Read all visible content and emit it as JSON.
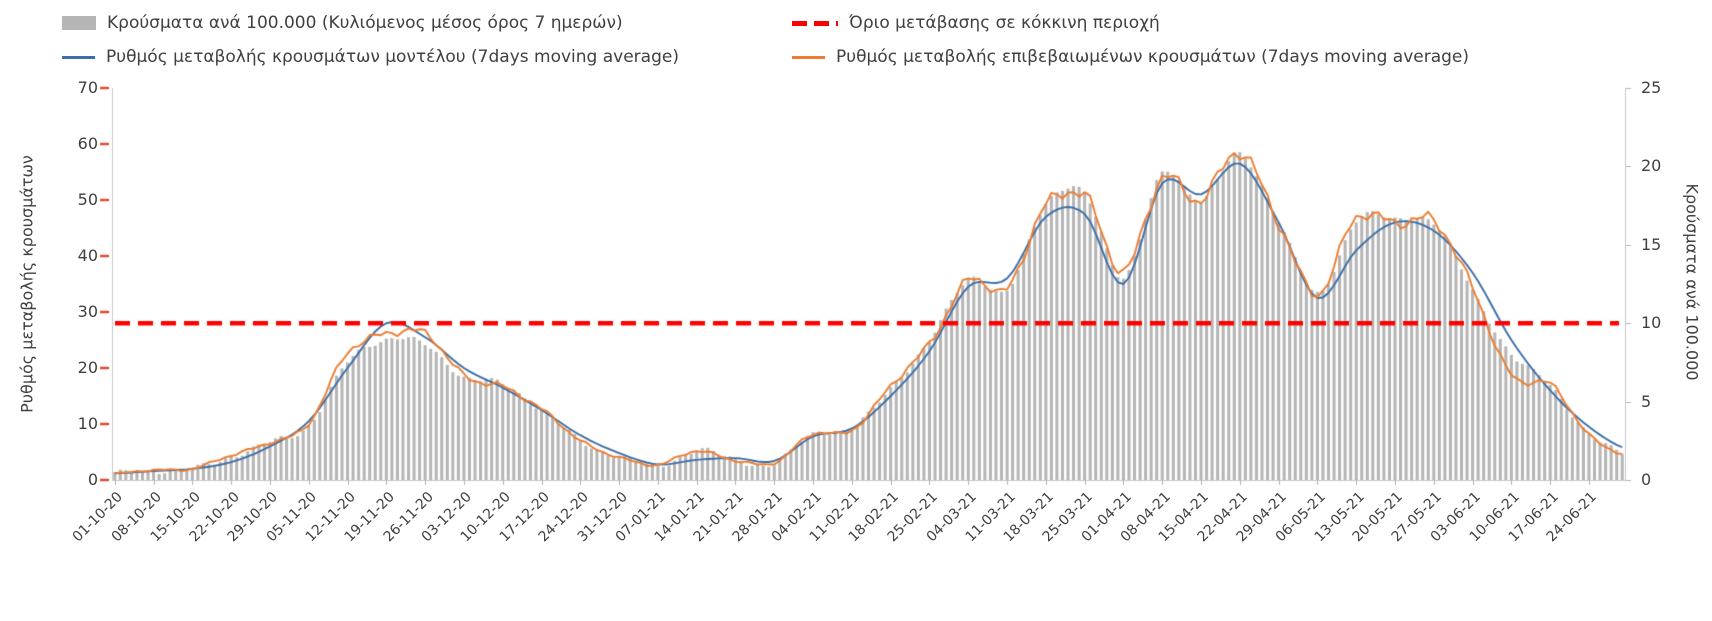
{
  "chart_data": {
    "type": "bar+line combo, dual y-axis",
    "x_tick_labels": [
      "01-10-20",
      "08-10-20",
      "15-10-20",
      "22-10-20",
      "29-10-20",
      "05-11-20",
      "12-11-20",
      "19-11-20",
      "26-11-20",
      "03-12-20",
      "10-12-20",
      "17-12-20",
      "24-12-20",
      "31-12-20",
      "07-01-21",
      "14-01-21",
      "21-01-21",
      "28-01-21",
      "04-02-21",
      "11-02-21",
      "18-02-21",
      "25-02-21",
      "04-03-21",
      "11-03-21",
      "18-03-21",
      "25-03-21",
      "01-04-21",
      "08-04-21",
      "15-04-21",
      "22-04-21",
      "29-04-21",
      "06-05-21",
      "13-05-21",
      "20-05-21",
      "27-05-21",
      "03-06-21",
      "10-06-21",
      "17-06-21",
      "24-06-21"
    ],
    "left_axis": {
      "label": "Ρυθμός μεταβολής κρουσμάτων",
      "min": 0,
      "max": 70,
      "ticks": [
        0,
        10,
        20,
        30,
        40,
        50,
        60,
        70
      ],
      "tick_color": "#e8432a"
    },
    "right_axis": {
      "label": "Κρούσματα ανά 100.000",
      "min": 0,
      "max": 25,
      "ticks": [
        0,
        5,
        10,
        15,
        20,
        25
      ]
    },
    "threshold": {
      "name": "Όριο μετάβασης σε κόκκινη περιοχή",
      "value_right_axis": 10,
      "value_left_axis": 28,
      "color": "#ff0000",
      "style": "dashed"
    },
    "grid": "off",
    "legend_position": "top, two columns, two rows",
    "series": [
      {
        "name": "Κρούσματα ανά 100.000 (Κυλιόμενος μέσος όρος 7 ημερών)",
        "type": "bar",
        "axis": "right",
        "color": "#b5b5b5",
        "resolution": "daily",
        "weekly_values": [
          0.4,
          0.6,
          0.7,
          1.5,
          2.4,
          3.5,
          7.5,
          9.0,
          8.6,
          6.6,
          6.1,
          4.5,
          2.5,
          1.5,
          0.9,
          1.9,
          1.3,
          1.0,
          3.0,
          3.2,
          5.9,
          8.8,
          12.9,
          12.0,
          17.7,
          18.2,
          13.0,
          19.5,
          17.9,
          20.7,
          16.6,
          11.8,
          16.6,
          16.6,
          16.4,
          12.1,
          8.0,
          6.1,
          2.9
        ]
      },
      {
        "name": "Ρυθμός μεταβολής κρουσμάτων μοντέλου (7days moving average)",
        "type": "line",
        "axis": "left",
        "color": "#3d6ea8",
        "resolution": "daily, smooth",
        "weekly_values": [
          1.2,
          1.6,
          2.0,
          3.2,
          6.0,
          10.5,
          20.0,
          28.0,
          25.5,
          20.0,
          16.5,
          12.5,
          8.0,
          4.8,
          2.8,
          3.6,
          3.9,
          3.4,
          7.8,
          9.2,
          15.0,
          23.0,
          34.5,
          36.0,
          47.0,
          47.5,
          35.0,
          53.0,
          51.0,
          56.5,
          46.0,
          32.5,
          41.0,
          46.0,
          44.5,
          37.0,
          25.0,
          16.0,
          9.5
        ]
      },
      {
        "name": "Ρυθμός μεταβολής επιβεβαιωμένων κρουσμάτων (7days moving average)",
        "type": "line",
        "axis": "left",
        "color": "#ed7d31",
        "resolution": "daily, jagged",
        "weekly_values": [
          1.0,
          1.9,
          2.0,
          4.3,
          6.8,
          10.0,
          22.5,
          26.5,
          26.0,
          18.5,
          17.0,
          12.5,
          7.0,
          4.2,
          2.6,
          5.2,
          3.6,
          2.9,
          8.3,
          9.0,
          16.5,
          24.5,
          36.0,
          33.5,
          49.5,
          51.0,
          36.5,
          54.5,
          50.0,
          58.0,
          46.5,
          33.0,
          46.5,
          46.5,
          46.0,
          34.0,
          19.0,
          17.0,
          8.0
        ]
      }
    ]
  }
}
